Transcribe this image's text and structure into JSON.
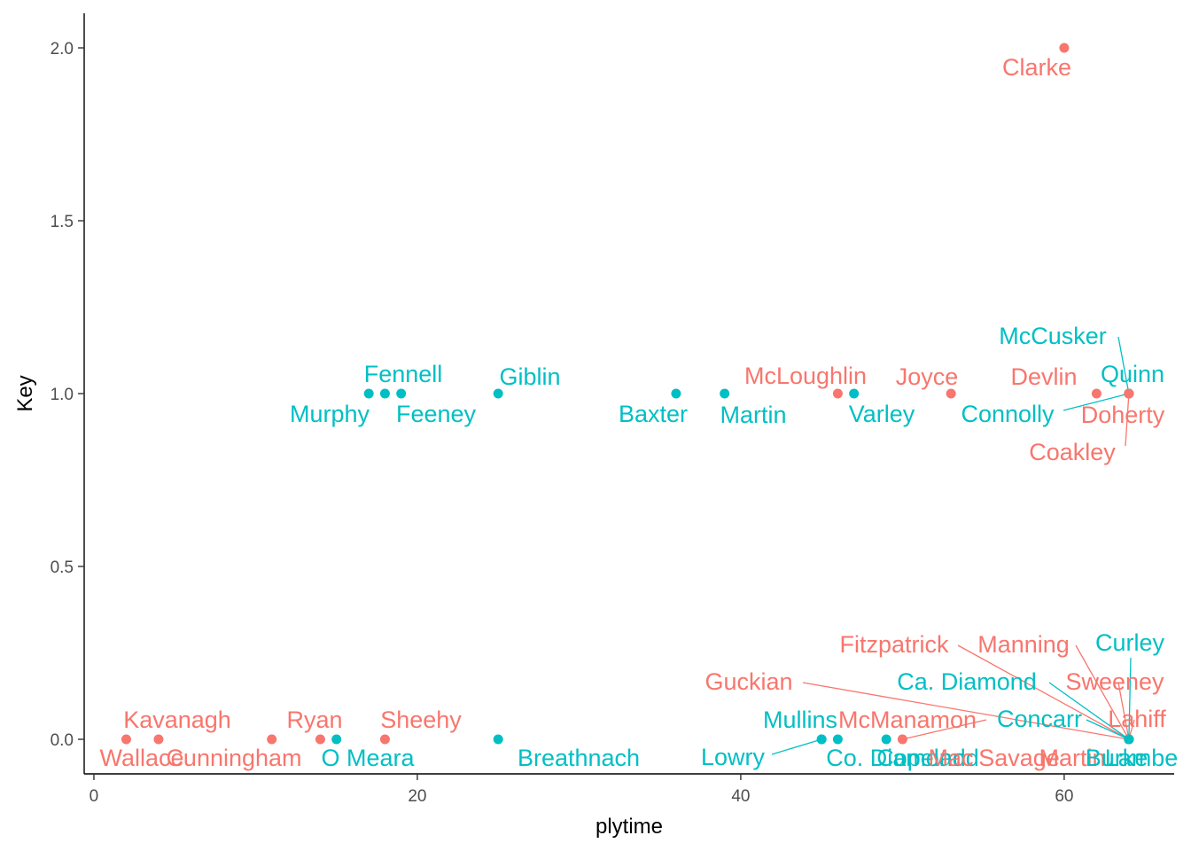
{
  "chart_data": {
    "type": "scatter",
    "title": "",
    "xlabel": "plytime",
    "ylabel": "Key",
    "xlim": [
      -0.6,
      66.8
    ],
    "ylim": [
      -0.1,
      2.1
    ],
    "x_ticks": [
      0,
      20,
      40,
      60
    ],
    "y_ticks": [
      0.0,
      0.5,
      1.0,
      1.5,
      2.0
    ],
    "x_tick_labels": [
      "0",
      "20",
      "40",
      "60"
    ],
    "y_tick_labels": [
      "0.0",
      "0.5",
      "1.0",
      "1.5",
      "2.0"
    ],
    "grid": false,
    "legend": "none",
    "colors": {
      "red": "#F8766D",
      "teal": "#00BFC4",
      "axis": "#000000",
      "tick_text": "#4D4D4D"
    },
    "points": [
      {
        "name": "Clarke",
        "x": 60,
        "y": 2,
        "group": "red"
      },
      {
        "name": "Wallace",
        "x": 2,
        "y": 0,
        "group": "red"
      },
      {
        "name": "Kavanagh",
        "x": 4,
        "y": 0,
        "group": "red"
      },
      {
        "name": "Cunningham",
        "x": 11,
        "y": 0,
        "group": "red"
      },
      {
        "name": "Ryan",
        "x": 14,
        "y": 0,
        "group": "red"
      },
      {
        "name": "O Meara",
        "x": 15,
        "y": 0,
        "group": "teal"
      },
      {
        "name": "Sheehy",
        "x": 18,
        "y": 0,
        "group": "red"
      },
      {
        "name": "Breathnach",
        "x": 25,
        "y": 0,
        "group": "teal"
      },
      {
        "name": "Mullins",
        "x": 45,
        "y": 0,
        "group": "teal"
      },
      {
        "name": "Lowry",
        "x": 45,
        "y": 0,
        "group": "teal"
      },
      {
        "name": "Co. Diamond",
        "x": 46,
        "y": 0,
        "group": "teal"
      },
      {
        "name": "Copeland",
        "x": 49,
        "y": 0,
        "group": "teal"
      },
      {
        "name": "McManamon",
        "x": 50,
        "y": 0,
        "group": "red"
      },
      {
        "name": "Guckian",
        "x": 64,
        "y": 0,
        "group": "red"
      },
      {
        "name": "Fitzpatrick",
        "x": 64,
        "y": 0,
        "group": "red"
      },
      {
        "name": "Manning",
        "x": 64,
        "y": 0,
        "group": "red"
      },
      {
        "name": "Curley",
        "x": 64,
        "y": 0,
        "group": "teal"
      },
      {
        "name": "Ca. Diamond",
        "x": 64,
        "y": 0,
        "group": "teal"
      },
      {
        "name": "Sweeney",
        "x": 64,
        "y": 0,
        "group": "red"
      },
      {
        "name": "Concarr",
        "x": 64,
        "y": 0,
        "group": "teal"
      },
      {
        "name": "Lahiff",
        "x": 64,
        "y": 0,
        "group": "red"
      },
      {
        "name": "Mac",
        "x": 64,
        "y": 0,
        "group": "red"
      },
      {
        "name": "Savage",
        "x": 64,
        "y": 0,
        "group": "red"
      },
      {
        "name": "Martin",
        "x": 64,
        "y": 0,
        "group": "red"
      },
      {
        "name": "Burke",
        "x": 64,
        "y": 0,
        "group": "teal"
      },
      {
        "name": "Lambe",
        "x": 64,
        "y": 0,
        "group": "teal"
      },
      {
        "name": "Murphy",
        "x": 17,
        "y": 1,
        "group": "teal"
      },
      {
        "name": "Fennell",
        "x": 18,
        "y": 1,
        "group": "teal"
      },
      {
        "name": "Feeney",
        "x": 19,
        "y": 1,
        "group": "teal"
      },
      {
        "name": "Giblin",
        "x": 25,
        "y": 1,
        "group": "teal"
      },
      {
        "name": "Baxter",
        "x": 36,
        "y": 1,
        "group": "teal"
      },
      {
        "name": "Martin",
        "x": 39,
        "y": 1,
        "group": "teal"
      },
      {
        "name": "McLoughlin",
        "x": 46,
        "y": 1,
        "group": "red"
      },
      {
        "name": "Varley",
        "x": 47,
        "y": 1,
        "group": "teal"
      },
      {
        "name": "Joyce",
        "x": 53,
        "y": 1,
        "group": "red"
      },
      {
        "name": "Devlin",
        "x": 62,
        "y": 1,
        "group": "red"
      },
      {
        "name": "Quinn",
        "x": 64,
        "y": 1,
        "group": "teal"
      },
      {
        "name": "McCusker",
        "x": 64,
        "y": 1,
        "group": "teal"
      },
      {
        "name": "Connolly",
        "x": 64,
        "y": 1,
        "group": "teal"
      },
      {
        "name": "Doherty",
        "x": 64,
        "y": 1,
        "group": "red"
      },
      {
        "name": "Coakley",
        "x": 64,
        "y": 1,
        "group": "red"
      }
    ]
  }
}
